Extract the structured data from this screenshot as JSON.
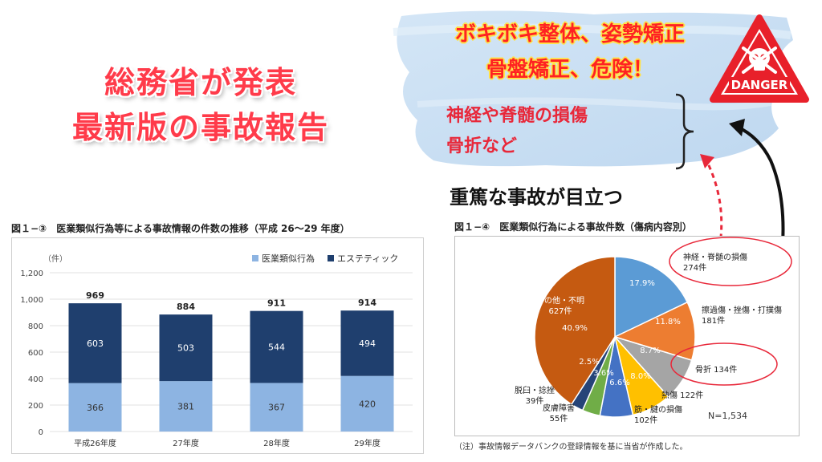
{
  "headline": {
    "line1": "総務省が発表",
    "line2": "最新版の事故報告"
  },
  "warning": {
    "line1": "ボキボキ整体、姿勢矯正",
    "line2": "骨盤矯正、危険！",
    "danger_label": "DANGER"
  },
  "injuries": {
    "line1": "神経や脊髄の損傷",
    "line2": "骨折など"
  },
  "severe_text": "重篤な事故が目立つ",
  "colors": {
    "headline": "#ff3b4a",
    "medical": "#8db4e2",
    "esthetic": "#1f3f6e",
    "danger": "#e8202a",
    "circle": "#e8283a"
  },
  "bar_chart": {
    "caption": "図１−③　医業類似行為等による事故情報の件数の推移（平成 26〜29 年度）",
    "unit_label": "（件）",
    "legend": [
      "医業類似行為",
      "エステティック"
    ]
  },
  "pie_chart": {
    "caption": "図１−④　医業類似行為による事故件数（傷病内容別）",
    "total_label": "N=1,534",
    "note": "（注）事故情報データバンクの登録情報を基に当省が作成した。"
  },
  "chart_data": [
    {
      "type": "bar",
      "stacked": true,
      "categories": [
        "平成26年度",
        "27年度",
        "28年度",
        "29年度"
      ],
      "series": [
        {
          "name": "医業類似行為",
          "values": [
            366,
            381,
            367,
            420
          ]
        },
        {
          "name": "エステティック",
          "values": [
            603,
            503,
            544,
            494
          ]
        }
      ],
      "totals": [
        "969",
        "884",
        "911",
        "914"
      ],
      "yticks": [
        "0",
        "200",
        "400",
        "600",
        "800",
        "1,000",
        "1,200"
      ],
      "ylim": [
        0,
        1200
      ],
      "ylabel": "（件）",
      "legend_position": "top-right",
      "grid": true
    },
    {
      "type": "pie",
      "slices": [
        {
          "name": "神経・脊髄の損傷",
          "count": "274件",
          "percent": 17.9,
          "pct_label": "17.9%",
          "color": "#5b9bd5"
        },
        {
          "name": "擦過傷・挫傷・打撲傷",
          "count": "181件",
          "percent": 11.8,
          "pct_label": "11.8%",
          "color": "#ed7d31"
        },
        {
          "name": "骨折",
          "count": "134件",
          "percent": 8.7,
          "pct_label": "8.7%",
          "color": "#a5a5a5"
        },
        {
          "name": "熱傷",
          "count": "122件",
          "percent": 8.0,
          "pct_label": "8.0%",
          "color": "#ffc000"
        },
        {
          "name": "筋・腱の損傷",
          "count": "102件",
          "percent": 6.6,
          "pct_label": "6.6%",
          "color": "#4472c4"
        },
        {
          "name": "皮膚障害",
          "count": "55件",
          "percent": 3.6,
          "pct_label": "3.6%",
          "color": "#70ad47"
        },
        {
          "name": "脱臼・捻挫",
          "count": "39件",
          "percent": 2.5,
          "pct_label": "2.5%",
          "color": "#264478"
        },
        {
          "name": "その他・不明",
          "count": "627件",
          "percent": 40.9,
          "pct_label": "40.9%",
          "color": "#c55a11"
        }
      ]
    }
  ]
}
